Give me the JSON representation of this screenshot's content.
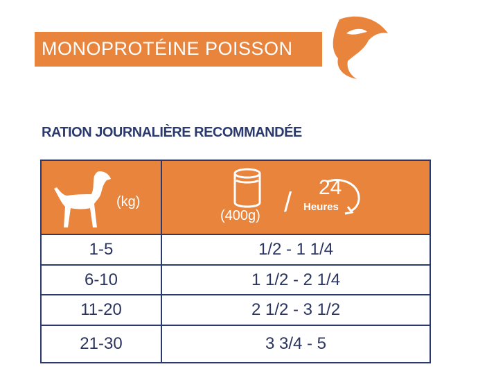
{
  "banner": {
    "title": "MONOPROTÉINE POISSON"
  },
  "heading": "RATION JOURNALIÈRE RECOMMANDÉE",
  "table": {
    "header": {
      "weight_unit": "(kg)",
      "can_size": "(400g)",
      "separator": "/",
      "period_number": "24",
      "period_unit": "Heures"
    },
    "rows": [
      [
        "1-5",
        "1/2 - 1 1/4"
      ],
      [
        "6-10",
        "1 1/2 - 2 1/4"
      ],
      [
        "11-20",
        "2 1/2 - 3 1/2"
      ],
      [
        "21-30",
        "3 3/4 - 5"
      ]
    ]
  }
}
